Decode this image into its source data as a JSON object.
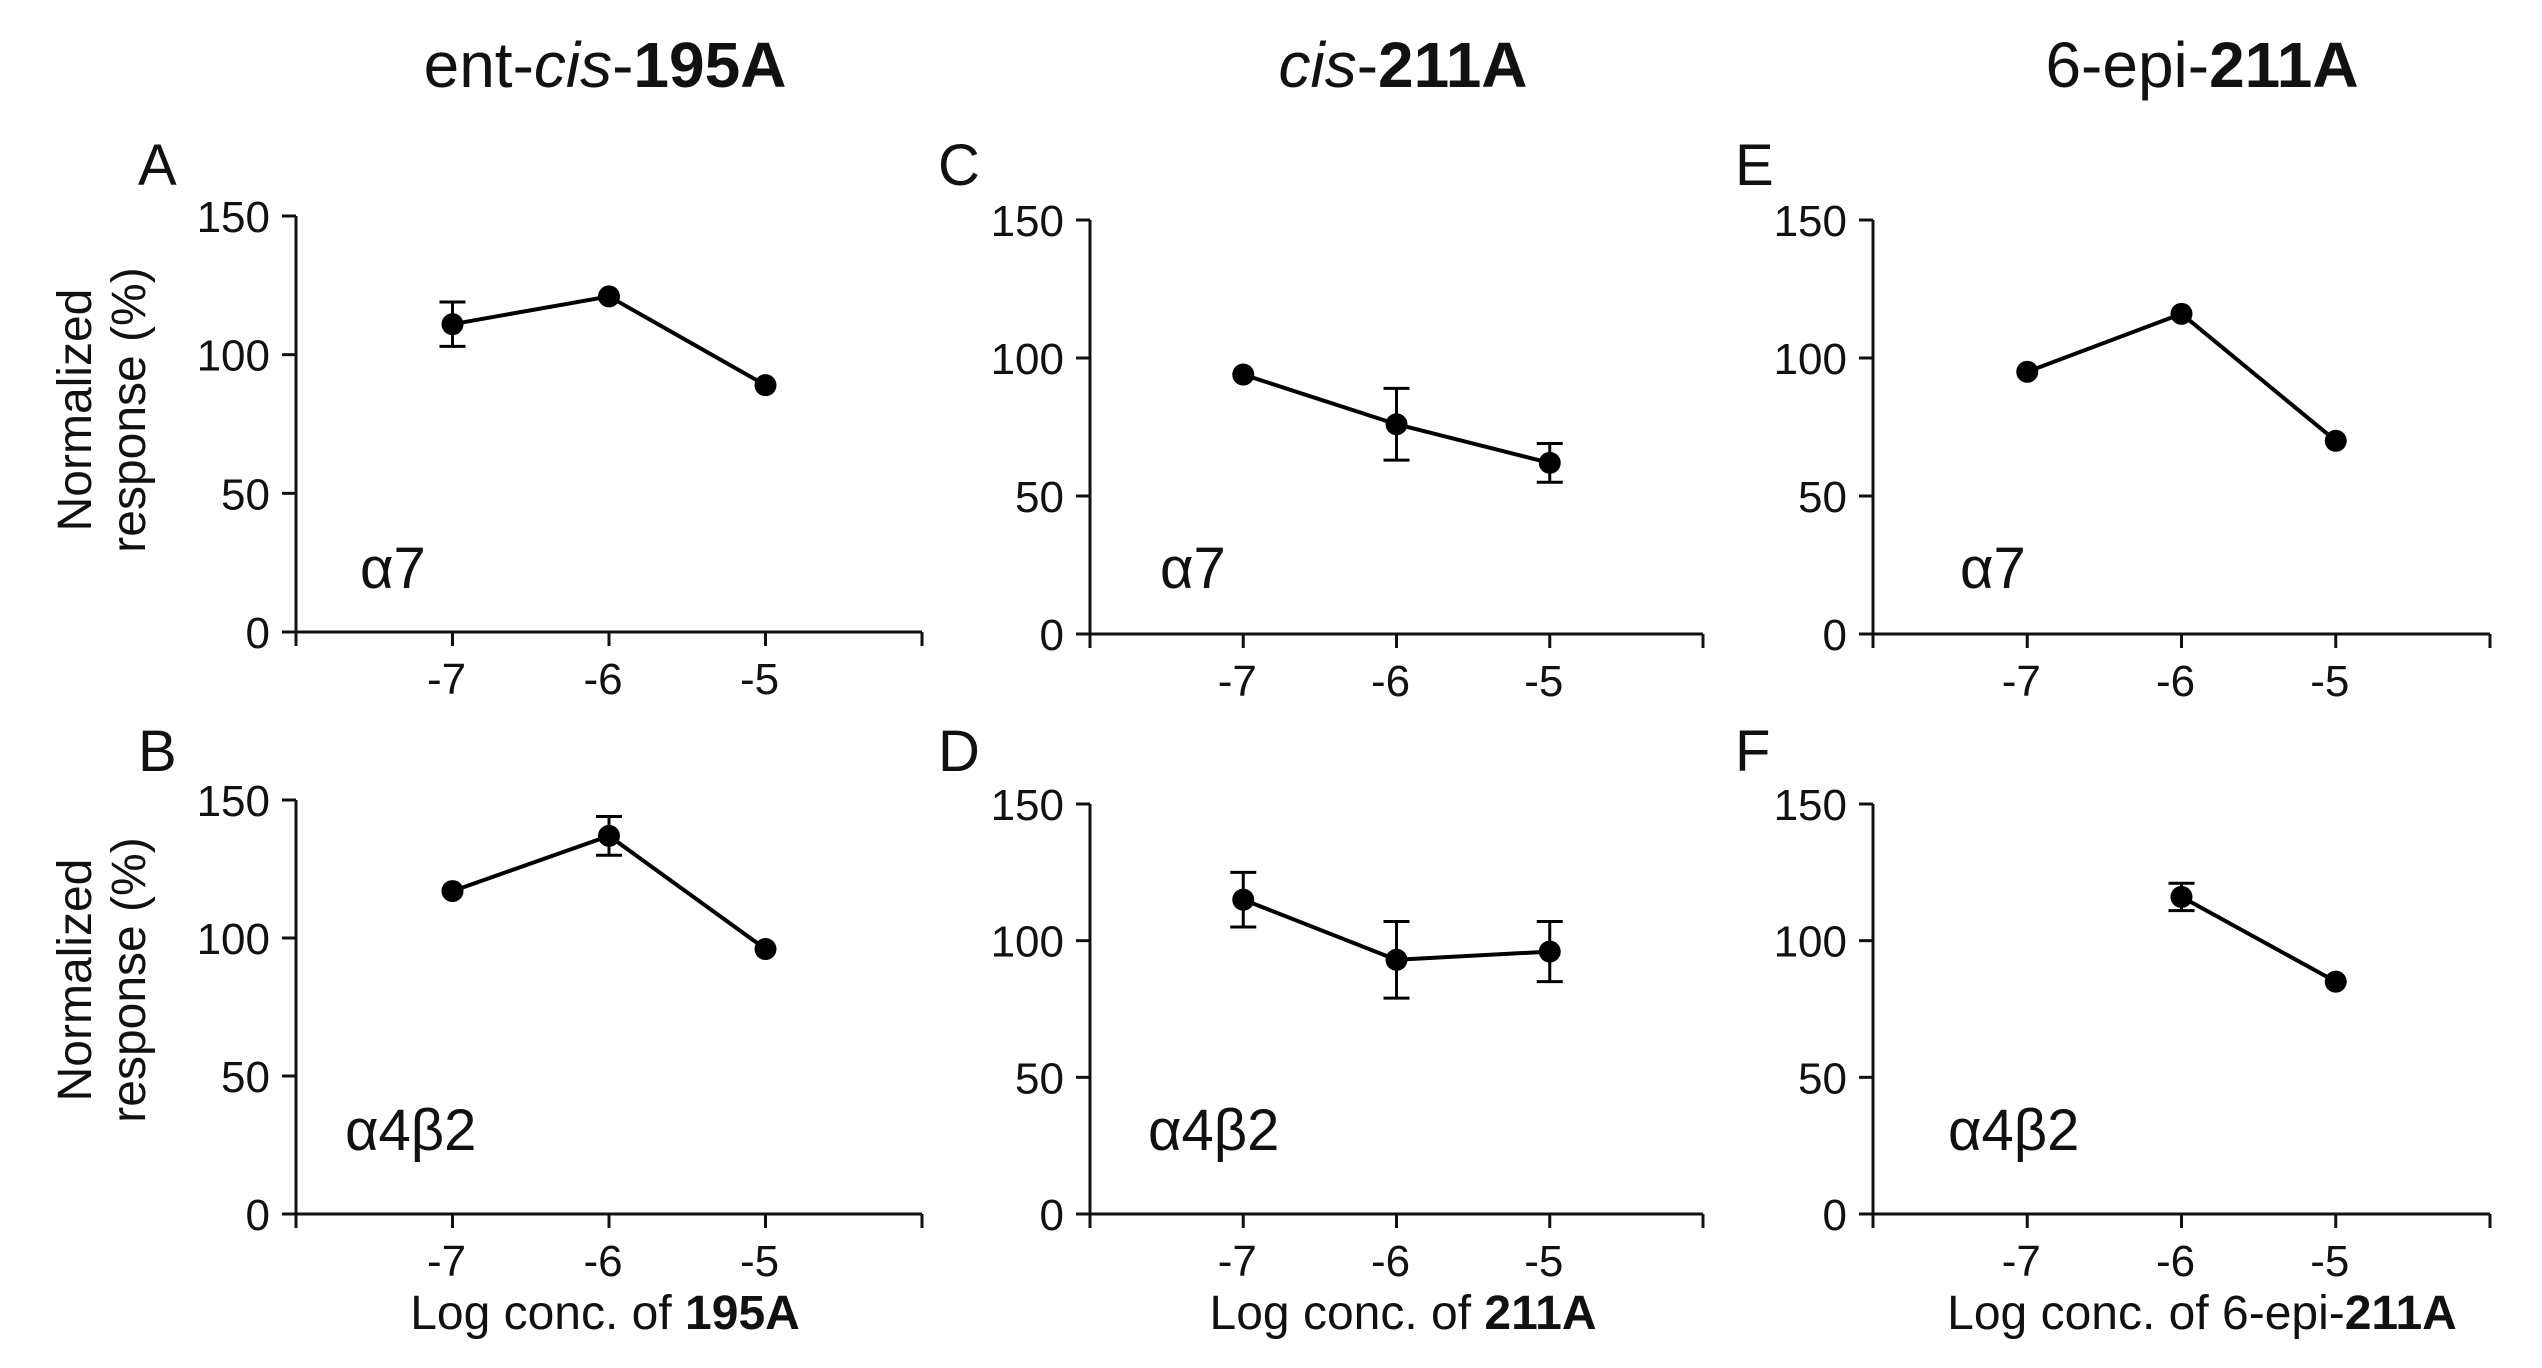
{
  "columns": [
    {
      "title_pre": "ent-",
      "title_ital": "cis",
      "title_sep": "-",
      "title_bold": "195A",
      "xlabel_pre": "Log conc. of ",
      "xlabel_bold": "195A"
    },
    {
      "title_pre": "",
      "title_ital": "cis",
      "title_sep": "-",
      "title_bold": "211A",
      "xlabel_pre": "Log conc. of ",
      "xlabel_bold": "211A"
    },
    {
      "title_pre": "6-epi-",
      "title_ital": "",
      "title_sep": "",
      "title_bold": "211A",
      "xlabel_pre": "Log conc. of 6-epi-",
      "xlabel_bold": "211A"
    }
  ],
  "ylabel_line1": "Normalized",
  "ylabel_line2": "response (%)",
  "colors": {
    "ink": "#111111",
    "marker": "#000000"
  },
  "chart_data": [
    {
      "type": "line",
      "panel": "A",
      "annotation": "α7",
      "x": [
        -7,
        -6,
        -5
      ],
      "y": [
        111,
        121,
        89
      ],
      "err": [
        8,
        2,
        2
      ],
      "xlim": [
        -8,
        -4
      ],
      "ylim": [
        0,
        150
      ],
      "xticks": [
        "-7",
        "-6",
        "-5"
      ],
      "yticks": [
        "0",
        "50",
        "100",
        "150"
      ]
    },
    {
      "type": "line",
      "panel": "C",
      "annotation": "α7",
      "x": [
        -7,
        -6,
        -5
      ],
      "y": [
        94,
        76,
        62
      ],
      "err": [
        2,
        13,
        7
      ],
      "xlim": [
        -8,
        -4
      ],
      "ylim": [
        0,
        150
      ],
      "xticks": [
        "-7",
        "-6",
        "-5"
      ],
      "yticks": [
        "0",
        "50",
        "100",
        "150"
      ]
    },
    {
      "type": "line",
      "panel": "E",
      "annotation": "α7",
      "x": [
        -7,
        -6,
        -5
      ],
      "y": [
        95,
        116,
        70
      ],
      "err": [
        2,
        2,
        2
      ],
      "xlim": [
        -8,
        -4
      ],
      "ylim": [
        0,
        150
      ],
      "xticks": [
        "-7",
        "-6",
        "-5"
      ],
      "yticks": [
        "0",
        "50",
        "100",
        "150"
      ]
    },
    {
      "type": "line",
      "panel": "B",
      "annotation": "α4β2",
      "x": [
        -7,
        -6,
        -5
      ],
      "y": [
        117,
        137,
        96
      ],
      "err": [
        2,
        7,
        2
      ],
      "xlim": [
        -8,
        -4
      ],
      "ylim": [
        0,
        150
      ],
      "xticks": [
        "-7",
        "-6",
        "-5"
      ],
      "yticks": [
        "0",
        "50",
        "100",
        "150"
      ]
    },
    {
      "type": "line",
      "panel": "D",
      "annotation": "α4β2",
      "x": [
        -7,
        -6,
        -5
      ],
      "y": [
        115,
        93,
        96
      ],
      "err": [
        10,
        14,
        11
      ],
      "xlim": [
        -8,
        -4
      ],
      "ylim": [
        0,
        150
      ],
      "xticks": [
        "-7",
        "-6",
        "-5"
      ],
      "yticks": [
        "0",
        "50",
        "100",
        "150"
      ]
    },
    {
      "type": "line",
      "panel": "F",
      "annotation": "α4β2",
      "x": [
        -6,
        -5
      ],
      "y": [
        116,
        85
      ],
      "err": [
        5,
        2
      ],
      "xlim": [
        -8,
        -4
      ],
      "ylim": [
        0,
        150
      ],
      "xticks": [
        "-7",
        "-6",
        "-5"
      ],
      "yticks": [
        "0",
        "50",
        "100",
        "150"
      ]
    }
  ]
}
